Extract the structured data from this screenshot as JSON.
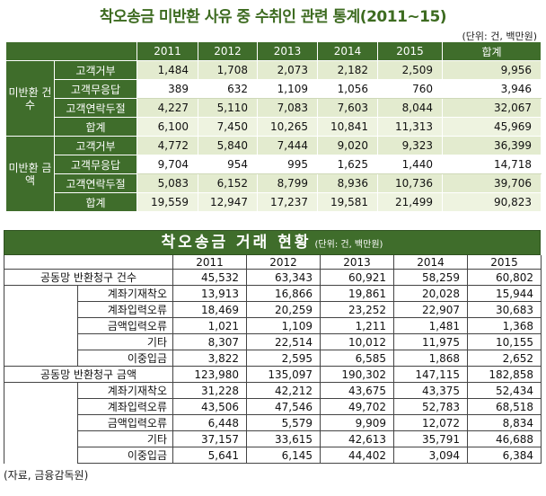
{
  "title1": "착오송금 미반환 사유 중 수취인 관련 통계(2011~15)",
  "unit1": "(단위: 건, 백만원)",
  "table1": {
    "years": [
      "2011",
      "2012",
      "2013",
      "2014",
      "2015"
    ],
    "total_header": "합계",
    "groups": [
      {
        "label": "미반환 건수",
        "rows": [
          {
            "label": "고객거부",
            "values": [
              "1,484",
              "1,708",
              "2,073",
              "2,182",
              "2,509",
              "9,956"
            ]
          },
          {
            "label": "고객무응답",
            "values": [
              "389",
              "632",
              "1,109",
              "1,056",
              "760",
              "3,946"
            ]
          },
          {
            "label": "고객연락두절",
            "values": [
              "4,227",
              "5,110",
              "7,083",
              "7,603",
              "8,044",
              "32,067"
            ]
          },
          {
            "label": "합계",
            "values": [
              "6,100",
              "7,450",
              "10,265",
              "10,841",
              "11,313",
              "45,969"
            ]
          }
        ]
      },
      {
        "label": "미반환 금액",
        "rows": [
          {
            "label": "고객거부",
            "values": [
              "4,772",
              "5,840",
              "7,444",
              "9,020",
              "9,323",
              "36,399"
            ]
          },
          {
            "label": "고객무응답",
            "values": [
              "9,704",
              "954",
              "995",
              "1,625",
              "1,440",
              "14,718"
            ]
          },
          {
            "label": "고객연락두절",
            "values": [
              "5,083",
              "6,152",
              "8,799",
              "8,936",
              "10,736",
              "39,706"
            ]
          },
          {
            "label": "합계",
            "values": [
              "19,559",
              "12,947",
              "17,237",
              "19,581",
              "21,499",
              "90,823"
            ]
          }
        ]
      }
    ]
  },
  "table2": {
    "title": "착오송금 거래 현황",
    "unit": "(단위: 건, 백만원)",
    "years": [
      "2011",
      "2012",
      "2013",
      "2014",
      "2015"
    ],
    "sections": [
      {
        "label": "공동망 반환청구 건수",
        "values": [
          "45,532",
          "63,343",
          "60,921",
          "58,259",
          "60,802"
        ],
        "rows": [
          {
            "label": "계좌기재착오",
            "values": [
              "13,913",
              "16,866",
              "19,861",
              "20,028",
              "15,944"
            ]
          },
          {
            "label": "계좌입력오류",
            "values": [
              "18,469",
              "20,259",
              "23,252",
              "22,907",
              "30,683"
            ]
          },
          {
            "label": "금액입력오류",
            "values": [
              "1,021",
              "1,109",
              "1,211",
              "1,481",
              "1,368"
            ]
          },
          {
            "label": "기타",
            "values": [
              "8,307",
              "22,514",
              "10,012",
              "11,975",
              "10,155"
            ]
          },
          {
            "label": "이중입금",
            "values": [
              "3,822",
              "2,595",
              "6,585",
              "1,868",
              "2,652"
            ]
          }
        ]
      },
      {
        "label": "공동망 반환청구 금액",
        "values": [
          "123,980",
          "135,097",
          "190,302",
          "147,115",
          "182,858"
        ],
        "rows": [
          {
            "label": "계좌기재착오",
            "values": [
              "31,228",
              "42,212",
              "43,675",
              "43,375",
              "52,434"
            ]
          },
          {
            "label": "계좌입력오류",
            "values": [
              "43,506",
              "47,546",
              "49,702",
              "52,783",
              "68,518"
            ]
          },
          {
            "label": "금액입력오류",
            "values": [
              "6,448",
              "5,579",
              "9,909",
              "12,072",
              "8,834"
            ]
          },
          {
            "label": "기타",
            "values": [
              "37,157",
              "33,615",
              "42,613",
              "35,791",
              "46,688"
            ]
          },
          {
            "label": "이중입금",
            "values": [
              "5,641",
              "6,145",
              "44,402",
              "3,094",
              "6,384"
            ]
          }
        ]
      }
    ]
  },
  "source": "(자료, 금융감독원)"
}
